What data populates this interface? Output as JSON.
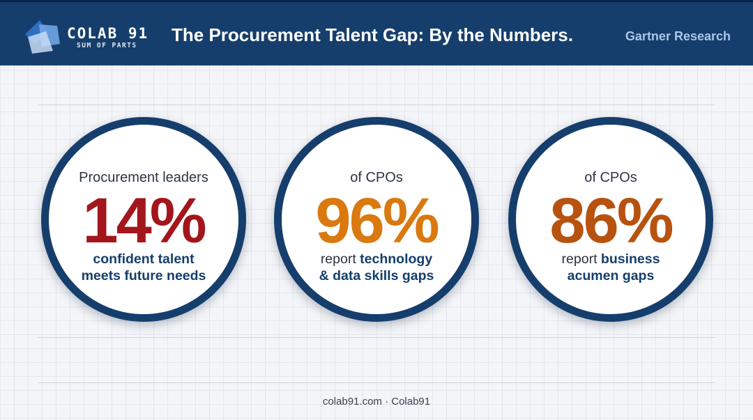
{
  "header": {
    "brand_name": "COLAB 91",
    "brand_tagline": "SUM OF PARTS",
    "title": "The Procurement Talent Gap: By the Numbers.",
    "source": "Gartner Research",
    "logo_icon": "colab91-logo-icon"
  },
  "stats": [
    {
      "label": "Procurement leaders",
      "value": "14%",
      "value_percent": 14,
      "color": "#a3161b",
      "desc_line1_plain": "",
      "desc_line1_strong": "confident talent",
      "desc_line2": "meets future needs"
    },
    {
      "label": "of CPOs",
      "value": "96%",
      "value_percent": 96,
      "color": "#d9790f",
      "desc_line1_plain": "report ",
      "desc_line1_strong": "technology",
      "desc_line2": "& data skills gaps"
    },
    {
      "label": "of CPOs",
      "value": "86%",
      "value_percent": 86,
      "color": "#b8520f",
      "desc_line1_plain": "report ",
      "desc_line1_strong": "business",
      "desc_line2": "acumen gaps"
    }
  ],
  "footer": {
    "text": "colab91.com · Colab91"
  },
  "colors": {
    "header_bg": "#163e6c",
    "circle_ring": "#163e6c",
    "source_text": "#a9c6e8"
  }
}
